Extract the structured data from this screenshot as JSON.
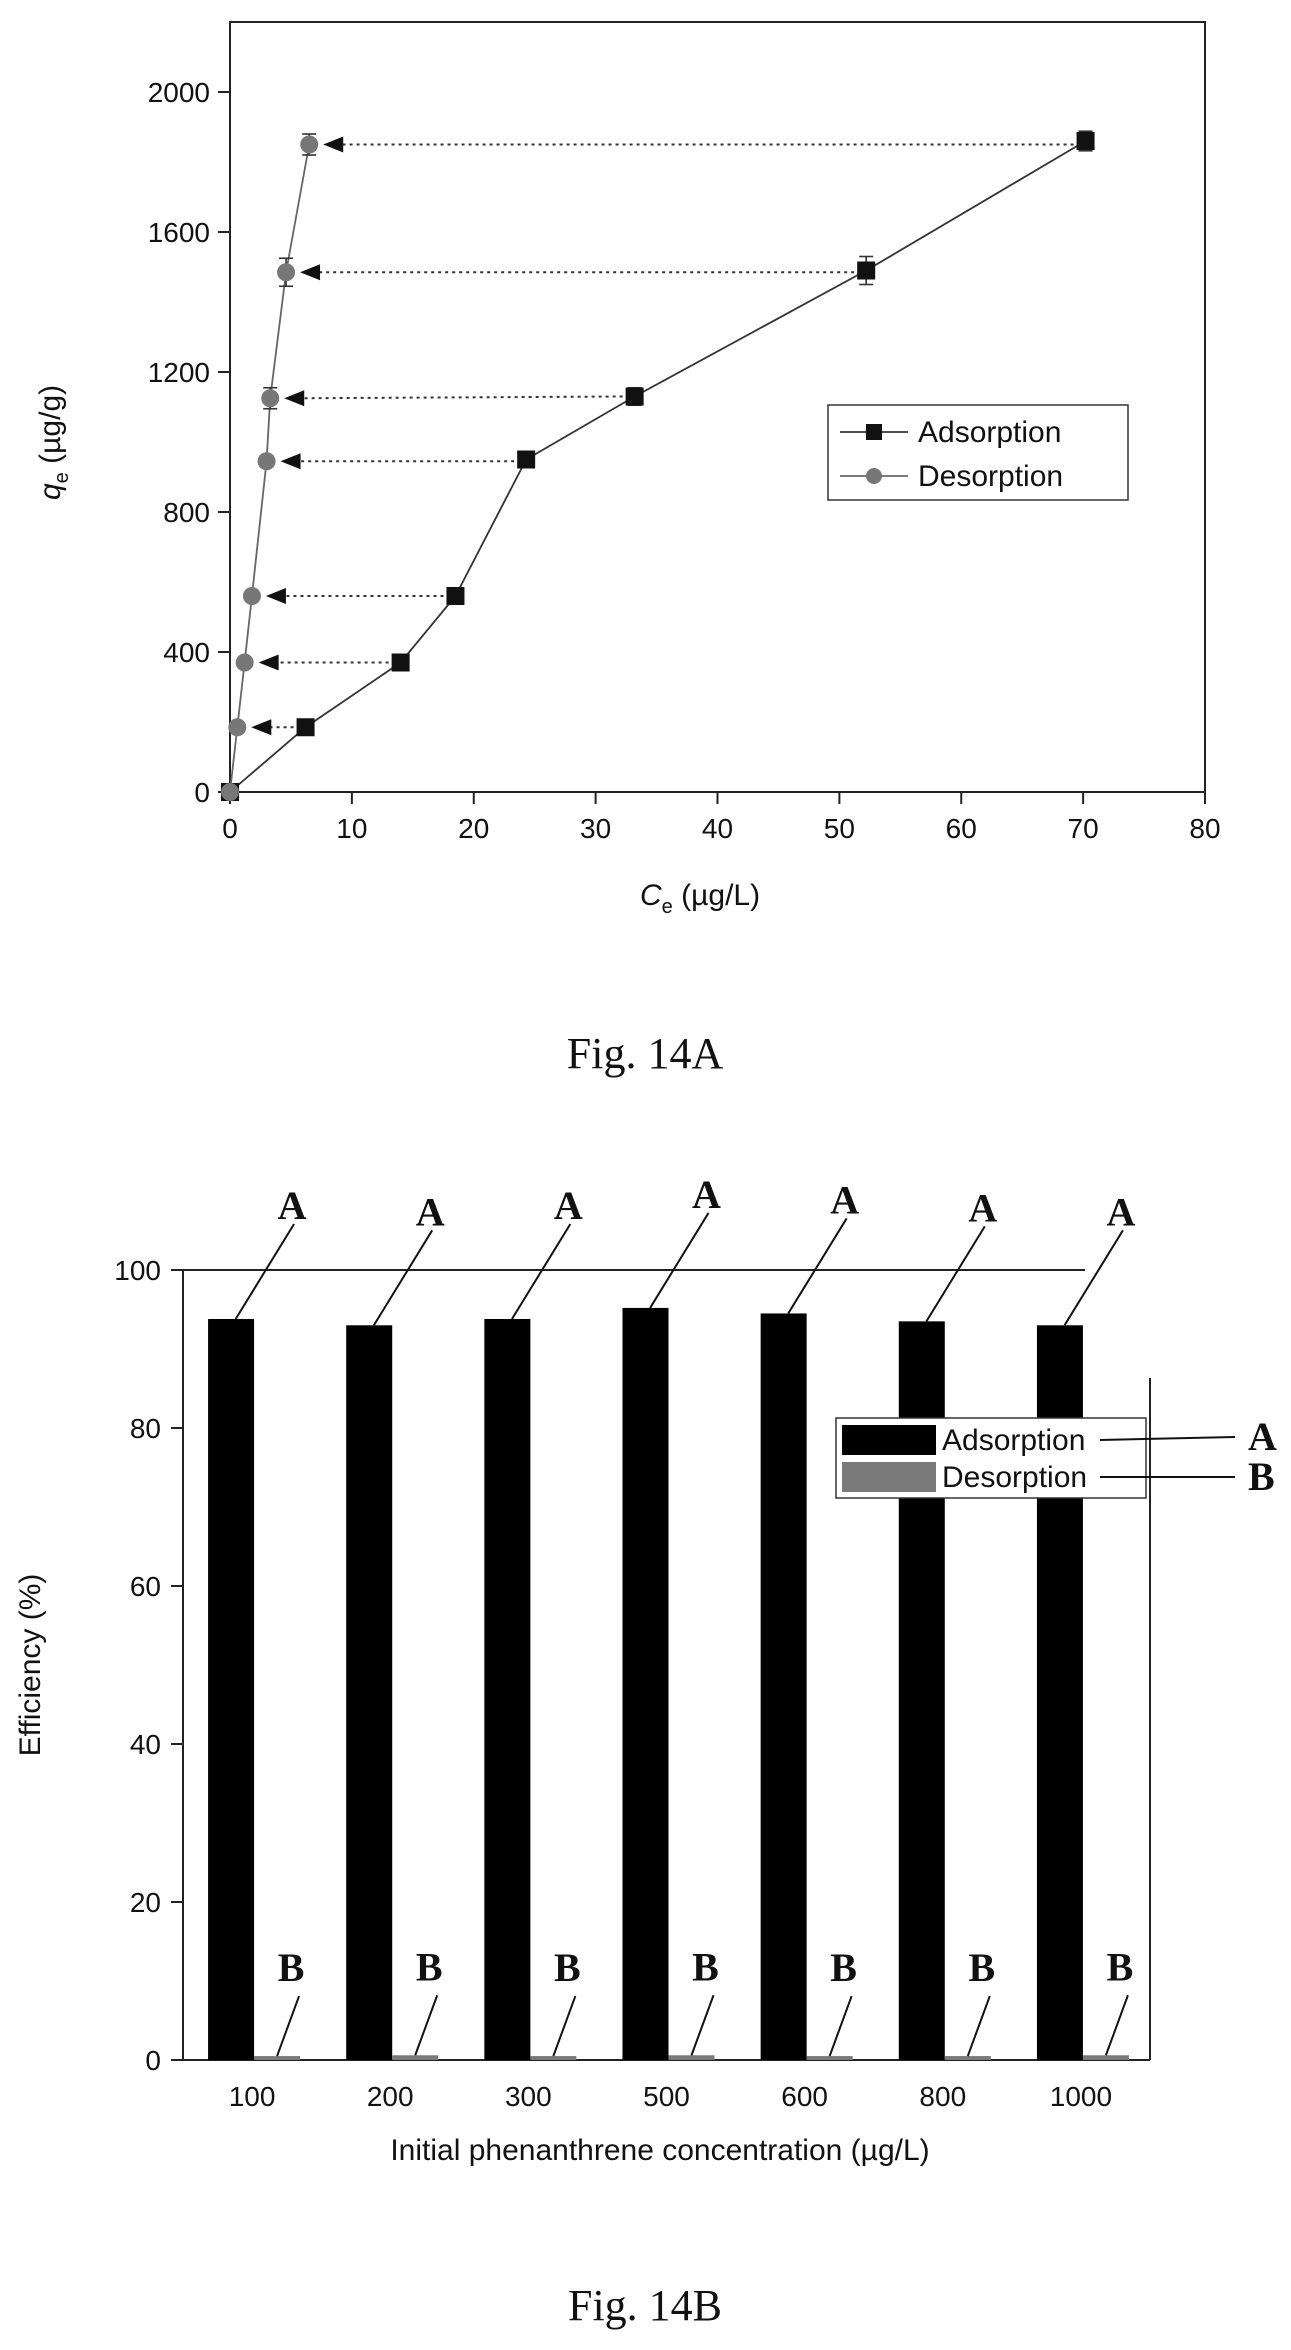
{
  "chart_data": [
    {
      "type": "scatter",
      "title": "",
      "xlabel_main": "C",
      "xlabel_sub": "e",
      "xlabel_unit": " (µg/L)",
      "ylabel_main": "q",
      "ylabel_sub": "e",
      "ylabel_unit": " (µg/g)",
      "xlim": [
        0,
        80
      ],
      "ylim": [
        0,
        2200
      ],
      "xticks": [
        0,
        10,
        20,
        30,
        40,
        50,
        60,
        70,
        80
      ],
      "yticks": [
        0,
        400,
        800,
        1200,
        1600,
        2000
      ],
      "grid": false,
      "legend_position": "right-middle",
      "series": [
        {
          "name": "Adsorption",
          "marker": "square",
          "color": "#111111",
          "x": [
            0,
            6.2,
            14,
            18.5,
            24.3,
            33.2,
            52.2,
            70.2
          ],
          "y": [
            0,
            185,
            370,
            560,
            950,
            1130,
            1490,
            1860
          ],
          "err": [
            0,
            10,
            12,
            15,
            15,
            25,
            40,
            28
          ]
        },
        {
          "name": "Desorption",
          "marker": "circle",
          "color": "#777777",
          "x": [
            0,
            0.6,
            1.2,
            1.8,
            3,
            3.3,
            4.6,
            6.5
          ],
          "y": [
            0,
            185,
            370,
            560,
            945,
            1125,
            1485,
            1850
          ],
          "err": [
            0,
            8,
            10,
            12,
            15,
            30,
            40,
            30
          ]
        }
      ],
      "arrows": [
        {
          "from": [
            6.2,
            185
          ],
          "to": [
            0.6,
            185
          ]
        },
        {
          "from": [
            14,
            370
          ],
          "to": [
            1.2,
            370
          ]
        },
        {
          "from": [
            18.5,
            560
          ],
          "to": [
            1.8,
            560
          ]
        },
        {
          "from": [
            24.3,
            945
          ],
          "to": [
            3,
            945
          ]
        },
        {
          "from": [
            33.2,
            1130
          ],
          "to": [
            3.3,
            1125
          ]
        },
        {
          "from": [
            52.2,
            1485
          ],
          "to": [
            4.6,
            1485
          ]
        },
        {
          "from": [
            70.2,
            1850
          ],
          "to": [
            6.5,
            1850
          ]
        }
      ]
    },
    {
      "type": "bar",
      "title": "",
      "xlabel": "Initial phenanthrene concentration (µg/L)",
      "ylabel": "Efficiency (%)",
      "ylim": [
        0,
        100
      ],
      "yticks": [
        0,
        20,
        40,
        60,
        80,
        100
      ],
      "categories": [
        "100",
        "200",
        "300",
        "500",
        "600",
        "800",
        "1000"
      ],
      "legend_position": "top-right",
      "series": [
        {
          "name": "Adsorption",
          "color": "#000000",
          "values": [
            93.8,
            93.0,
            93.8,
            95.2,
            94.5,
            93.5,
            93.0
          ]
        },
        {
          "name": "Desorption",
          "color": "#7a7a7a",
          "values": [
            0.5,
            0.6,
            0.5,
            0.6,
            0.5,
            0.5,
            0.6
          ]
        }
      ],
      "annotation_letters": {
        "adsorption": "A",
        "desorption": "B"
      }
    }
  ],
  "captions": {
    "fig_a": "Fig. 14A",
    "fig_b": "Fig. 14B"
  }
}
